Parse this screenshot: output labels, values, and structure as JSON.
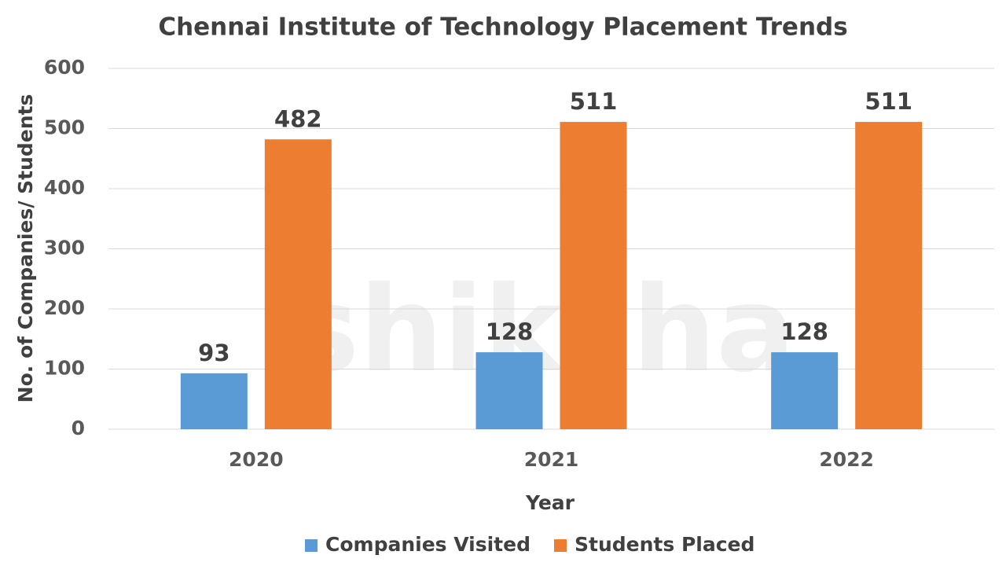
{
  "chart_data": {
    "type": "bar",
    "title": "Chennai Institute of Technology Placement Trends",
    "x_label": "Year",
    "y_label": "No. of Companies/ Students",
    "categories": [
      "2020",
      "2021",
      "2022"
    ],
    "series": [
      {
        "name": "Companies Visited",
        "color": "#5b9bd5",
        "values": [
          93,
          128,
          128
        ]
      },
      {
        "name": "Students Placed",
        "color": "#ed7d31",
        "values": [
          482,
          511,
          511
        ]
      }
    ],
    "ylim": [
      0,
      600
    ],
    "yticks": [
      0,
      100,
      200,
      300,
      400,
      500,
      600
    ],
    "grid": true,
    "legend": "bottom",
    "watermark": "shiksha"
  }
}
